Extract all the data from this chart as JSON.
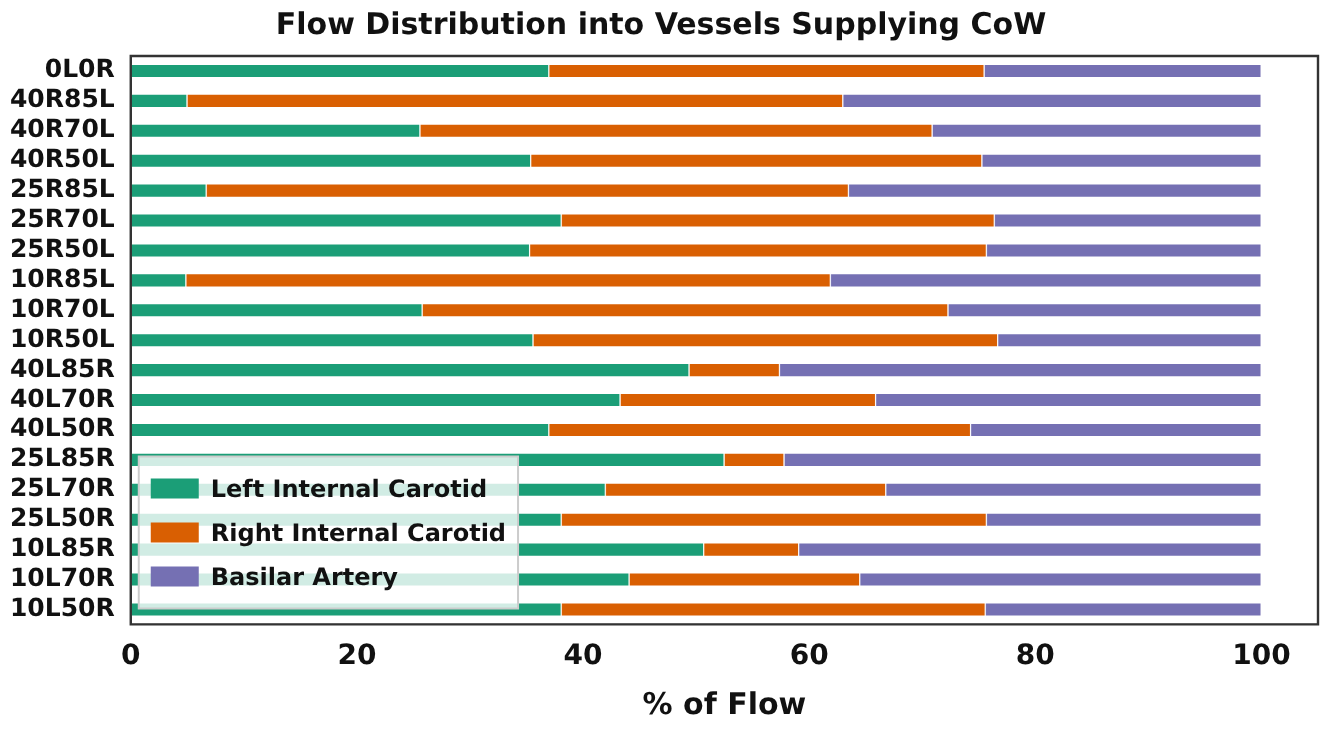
{
  "chart_data": {
    "type": "bar",
    "orientation": "horizontal",
    "stacked": true,
    "title": "Flow Distribution into Vessels Supplying CoW",
    "xlabel": "% of Flow",
    "categories": [
      "0L0R",
      "40R85L",
      "40R70L",
      "40R50L",
      "25R85L",
      "25R70L",
      "25R50L",
      "10R85L",
      "10R70L",
      "10R50L",
      "40L85R",
      "40L70R",
      "40L50R",
      "25L85R",
      "25L70R",
      "25L50R",
      "10L85R",
      "10L70R",
      "10L50R"
    ],
    "series": [
      {
        "name": "Left Internal Carotid",
        "color": "#1b9e77",
        "values": [
          37,
          5,
          25.6,
          35.4,
          6.7,
          38.1,
          35.3,
          4.9,
          25.8,
          35.6,
          49.4,
          43.3,
          37,
          52.5,
          42,
          38.1,
          50.7,
          44.1,
          38.1
        ]
      },
      {
        "name": "Right Internal Carotid",
        "color": "#d95f02",
        "values": [
          38.5,
          58,
          45.3,
          39.9,
          56.8,
          38.3,
          40.4,
          57,
          46.5,
          41.1,
          8,
          22.6,
          37.3,
          5.3,
          24.8,
          37.6,
          8.4,
          20.4,
          37.5
        ]
      },
      {
        "name": "Basilar Artery",
        "color": "#7570b3",
        "values": [
          24.5,
          37,
          29.1,
          24.7,
          36.5,
          23.6,
          24.3,
          38.1,
          27.7,
          23.3,
          42.6,
          34.1,
          25.7,
          42.2,
          33.2,
          24.3,
          40.9,
          35.5,
          24.4
        ]
      }
    ],
    "xlim": [
      0,
      105
    ],
    "xticks": [
      0,
      20,
      40,
      60,
      80,
      100
    ],
    "grid": false,
    "legend": "bottom left"
  }
}
